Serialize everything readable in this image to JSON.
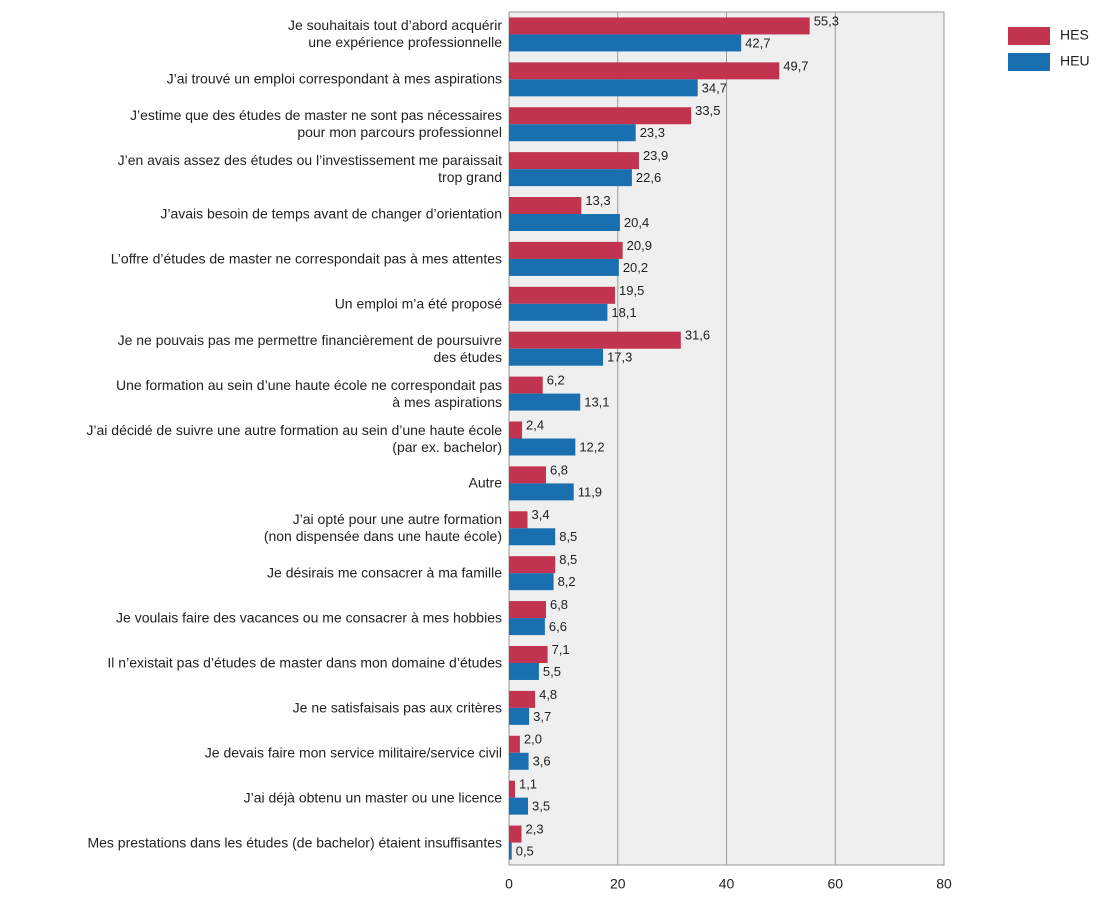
{
  "chart_data": {
    "type": "barh",
    "categories": [
      "Je souhaitais tout d’abord acquérir\nune expérience professionnelle",
      "J’ai trouvé un emploi correspondant à mes aspirations",
      "J’estime que des études de master ne sont pas nécessaires\npour mon parcours professionnel",
      "J’en avais assez des études ou l’investissement me paraissait\ntrop grand",
      "J’avais besoin de temps avant de changer d’orientation",
      "L’offre d’études de master ne correspondait pas à mes attentes",
      "Un emploi m’a été proposé",
      "Je ne pouvais pas me permettre financièrement de poursuivre\ndes études",
      "Une formation au sein d’une haute école ne correspondait pas\nà mes aspirations",
      "J’ai décidé de suivre une autre formation au sein d’une haute école\n(par ex. bachelor)",
      "Autre",
      "J’ai opté pour une autre formation\n(non dispensée dans une haute école)",
      "Je désirais me consacrer à ma famille",
      "Je voulais faire des vacances ou me consacrer à mes hobbies",
      "Il n’existait pas d’études de master dans mon domaine d’études",
      "Je ne satisfaisais pas aux critères",
      "Je devais faire mon service militaire/service civil",
      "J’ai déjà obtenu un master ou une licence",
      "Mes prestations dans les études (de bachelor) étaient insuffisantes"
    ],
    "series": [
      {
        "name": "HES",
        "color": "#c1334f",
        "values": [
          55.3,
          49.7,
          33.5,
          23.9,
          13.3,
          20.9,
          19.5,
          31.6,
          6.2,
          2.4,
          6.8,
          3.4,
          8.5,
          6.8,
          7.1,
          4.8,
          2.0,
          1.1,
          2.3
        ],
        "value_labels": [
          "55,3",
          "49,7",
          "33,5",
          "23,9",
          "13,3",
          "20,9",
          "19,5",
          "31,6",
          "6,2",
          "2,4",
          "6,8",
          "3,4",
          "8,5",
          "6,8",
          "7,1",
          "4,8",
          "2,0",
          "1,1",
          "2,3"
        ]
      },
      {
        "name": "HEU",
        "color": "#1a6fb0",
        "values": [
          42.7,
          34.7,
          23.3,
          22.6,
          20.4,
          20.2,
          18.1,
          17.3,
          13.1,
          12.2,
          11.9,
          8.5,
          8.2,
          6.6,
          5.5,
          3.7,
          3.6,
          3.5,
          0.5
        ],
        "value_labels": [
          "42,7",
          "34,7",
          "23,3",
          "22,6",
          "20,4",
          "20,2",
          "18,1",
          "17,3",
          "13,1",
          "12,2",
          "11,9",
          "8,5",
          "8,2",
          "6,6",
          "5,5",
          "3,7",
          "3,6",
          "3,5",
          "0,5"
        ]
      }
    ],
    "xlim": [
      0,
      80
    ],
    "xticks": [
      0,
      20,
      40,
      60,
      80
    ],
    "grid": true,
    "legend": "top-right"
  }
}
